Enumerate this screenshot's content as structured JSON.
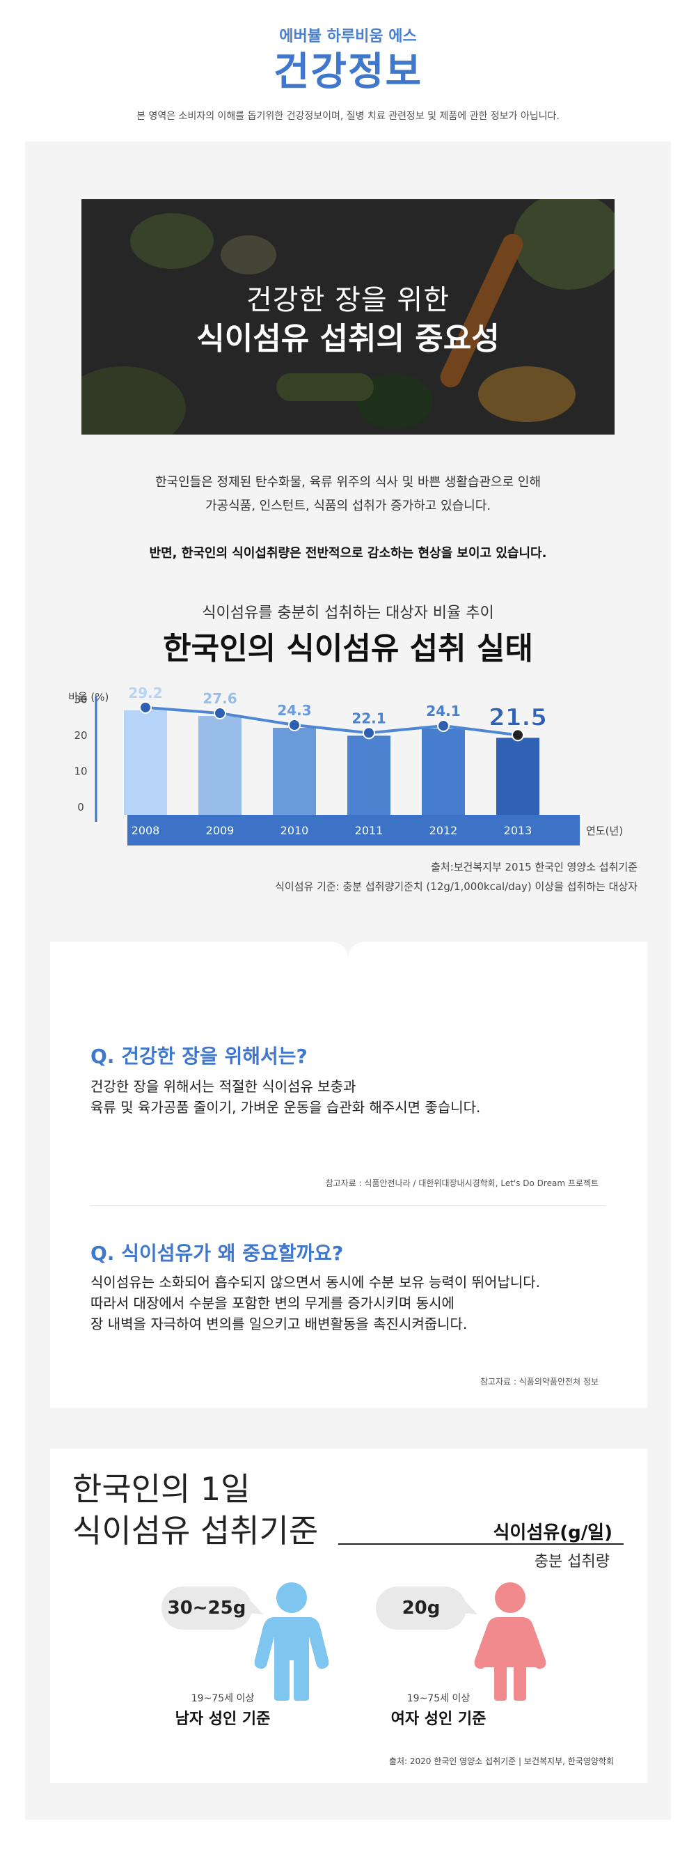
{
  "header": {
    "brand": "에버뷸 하루비움 에스",
    "title": "건강정보",
    "disclaimer": "본 영역은 소비자의 이해를 돕기위한 건강정보이며, 질병 치료 관련정보 및 제품에 관한 정보가 아닙니다."
  },
  "hero": {
    "line1": "건강한 장을 위한",
    "line2": "식이섬유 섭취의 중요성"
  },
  "intro": {
    "line1": "한국인들은 정제된 탄수화물, 육류 위주의 식사 및 바쁜 생활습관으로 인해",
    "line2": "가공식품, 인스턴트, 식품의 섭취가 증가하고 있습니다.",
    "emphasis": "반면, 한국인의 식이섭취량은 전반적으로 감소하는 현상을 보이고 있습니다."
  },
  "chart_section": {
    "subtitle": "식이섬유를 충분히 섭취하는 대상자 비율 추이",
    "title": "한국인의 식이섬유 섭취 실태",
    "source": "출처:보건복지부 2015 한국인 영양소 섭취기준",
    "criteria": "식이섬유 기준: 충분 섭취량기준치 (12g/1,000kcal/day) 이상을 섭취하는 대상자"
  },
  "chart_data": {
    "type": "bar",
    "categories": [
      "2008",
      "2009",
      "2010",
      "2011",
      "2012",
      "2013"
    ],
    "values": [
      29.2,
      27.6,
      24.3,
      22.1,
      24.1,
      21.5
    ],
    "labels": [
      "29.2",
      "27.6",
      "24.3",
      "22.1",
      "24.1",
      "21.5"
    ],
    "ylabel": "비율 (%)",
    "xlabel": "연도(년)",
    "yticks": [
      "0",
      "10",
      "20",
      "30"
    ],
    "ylim": [
      0,
      35
    ],
    "overlay": "line",
    "bar_colors": [
      "#b6d4f7",
      "#98bde8",
      "#6a9ad9",
      "#4c82d0",
      "#467dcd",
      "#2f62b4"
    ],
    "line_color": "#4f86d3",
    "axis_band_color": "#3d73c6"
  },
  "qa": {
    "q1": {
      "question": "Q. 건강한 장을 위해서는?",
      "line1": "건강한 장을 위해서는 적절한 식이섬유 보충과",
      "line2": "육류 및 육가공품 줄이기,  가벼운 운동을 습관화 해주시면 좋습니다.",
      "ref": "참고자료 : 식품안전나라 / 대한위대장내시경학회, Let's Do Dream 프로젝트"
    },
    "q2": {
      "question": "Q. 식이섬유가 왜 중요할까요?",
      "line1": "식이섬유는 소화되어 흡수되지 않으면서 동시에 수분 보유 능력이 뛰어납니다.",
      "line2": "따라서 대장에서 수분을 포함한 변의 무게를 증가시키며 동시에",
      "line3": "장 내벽을 자극하여 변의를 일으키고 배변활동을 촉진시켜줍니다.",
      "ref": "참고자료 : 식품의약품안전처 정보"
    }
  },
  "standard": {
    "title_line1": "한국인의 1일",
    "title_line2": "식이섬유 섭취기준",
    "unit": "식이섬유(g/일)",
    "sub": "충분 섭취량",
    "male": {
      "amount": "30~25g",
      "age": "19~75세 이상",
      "label": "남자 성인 기준",
      "color": "#7ec6f0"
    },
    "female": {
      "amount": "20g",
      "age": "19~75세 이상",
      "label": "여자 성인 기준",
      "color": "#f08a8c"
    },
    "source": "출처: 2020 한국인 영양소 섭취기준 | 보건복지부, 한국영양학회"
  }
}
